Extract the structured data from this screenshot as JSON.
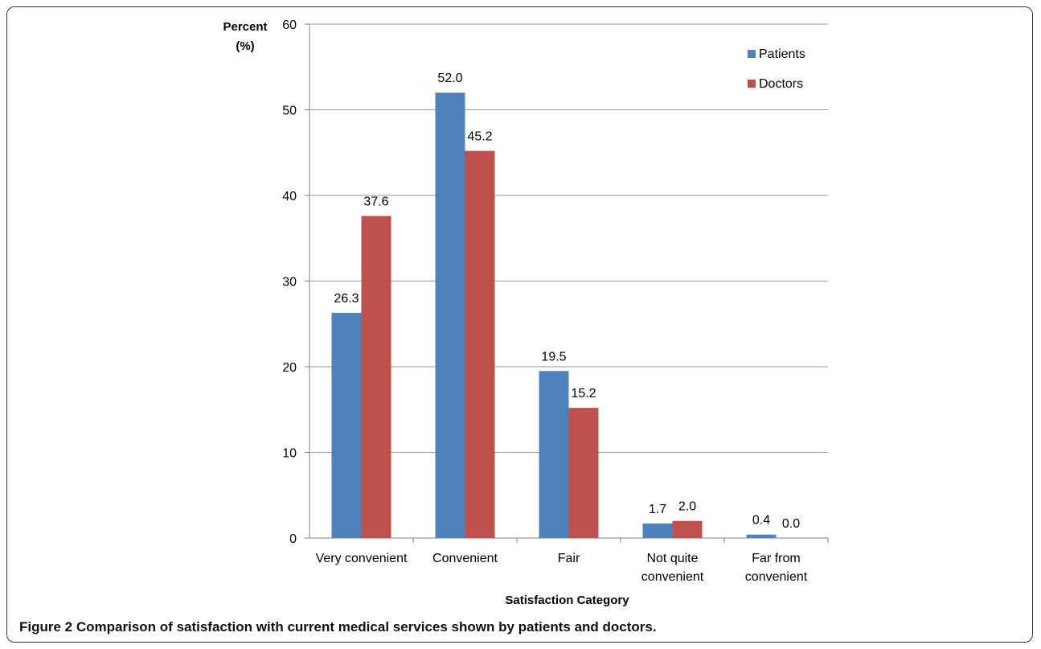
{
  "chart_data": {
    "type": "bar",
    "categories": [
      "Very convenient",
      "Convenient",
      "Fair",
      "Not quite convenient",
      "Far from convenient"
    ],
    "category_lines": [
      [
        "Very convenient"
      ],
      [
        "Convenient"
      ],
      [
        "Fair"
      ],
      [
        "Not quite",
        "convenient"
      ],
      [
        "Far from",
        "convenient"
      ]
    ],
    "series": [
      {
        "name": "Patients",
        "values": [
          26.3,
          52.0,
          19.5,
          1.7,
          0.4
        ],
        "labels": [
          "26.3",
          "52.0",
          "19.5",
          "1.7",
          "0.4"
        ],
        "color": "#4F81BD"
      },
      {
        "name": "Doctors",
        "values": [
          37.6,
          45.2,
          15.2,
          2.0,
          0.0
        ],
        "labels": [
          "37.6",
          "45.2",
          "15.2",
          "2.0",
          "0.0"
        ],
        "color": "#C0504D"
      }
    ],
    "ylabel_lines": [
      "Percent",
      "(%)"
    ],
    "xlabel": "Satisfaction Category",
    "ylim": [
      0,
      60
    ],
    "yticks": [
      0,
      10,
      20,
      30,
      40,
      50,
      60
    ],
    "grid": true,
    "legend_position": "top-right"
  },
  "caption": {
    "label": "Figure 2",
    "text": "Comparison of satisfaction with current medical services shown by patients and doctors."
  }
}
